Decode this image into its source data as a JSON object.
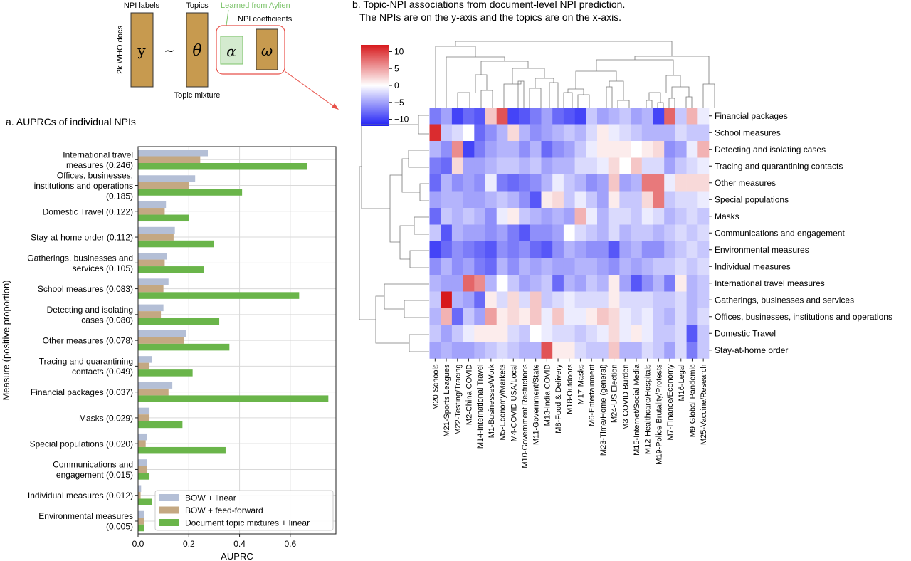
{
  "schematic": {
    "npi_labels": "NPI labels",
    "topics": "Topics",
    "learned": "Learned from Aylien",
    "npi_coefficients": "NPI coefficients",
    "docs": "2k WHO docs",
    "topic_mixture": "Topic mixture",
    "sym_y": "y",
    "sym_tilde": "~",
    "sym_theta": "θ",
    "sym_alpha": "α",
    "sym_omega": "ω",
    "colors": {
      "box": "#c79a4f",
      "alpha_box": "#d4ebcf",
      "accent": "#e8524a",
      "learned": "#7cc36a"
    }
  },
  "chart_data": [
    {
      "type": "bar",
      "orientation": "horizontal",
      "title": "a. AUPRCs of individual NPIs",
      "xlabel": "AUPRC",
      "ylabel": "Measure (positive proportion)",
      "xlim": [
        0,
        0.78
      ],
      "xticks": [
        "0.0",
        "0.2",
        "0.4",
        "0.6"
      ],
      "xtick_values": [
        0,
        0.2,
        0.4,
        0.6
      ],
      "grid": true,
      "legend_position": "lower-right",
      "categories": [
        [
          "International travel",
          "measures (0.246)"
        ],
        [
          "Offices, businesses,",
          "institutions and operations",
          "(0.185)"
        ],
        [
          "Domestic Travel (0.122)"
        ],
        [
          "Stay-at-home order (0.112)"
        ],
        [
          "Gatherings, businesses and",
          "services (0.105)"
        ],
        [
          "School measures (0.083)"
        ],
        [
          "Detecting and isolating",
          "cases (0.080)"
        ],
        [
          "Other measures (0.078)"
        ],
        [
          "Tracing and quarantining",
          "contacts (0.049)"
        ],
        [
          "Financial packages (0.037)"
        ],
        [
          "Masks (0.029)"
        ],
        [
          "Special populations (0.020)"
        ],
        [
          "Communications and",
          "engagement (0.015)"
        ],
        [
          "Individual measures (0.012)"
        ],
        [
          "Environmental measures",
          "(0.005)"
        ]
      ],
      "series": [
        {
          "name": "BOW + linear",
          "color": "#b4bfd6",
          "values": [
            0.275,
            0.225,
            0.11,
            0.145,
            0.115,
            0.12,
            0.1,
            0.19,
            0.055,
            0.135,
            0.045,
            0.035,
            0.035,
            0.012,
            0.025
          ]
        },
        {
          "name": "BOW + feed-forward",
          "color": "#c4a882",
          "values": [
            0.245,
            0.2,
            0.105,
            0.14,
            0.105,
            0.1,
            0.09,
            0.18,
            0.045,
            0.12,
            0.045,
            0.03,
            0.035,
            0.01,
            0.025
          ]
        },
        {
          "name": "Document topic mixtures + linear",
          "color": "#6ab54a",
          "values": [
            0.665,
            0.41,
            0.2,
            0.3,
            0.26,
            0.635,
            0.32,
            0.36,
            0.215,
            0.75,
            0.175,
            0.345,
            0.045,
            0.055,
            0.025
          ]
        }
      ]
    },
    {
      "type": "heatmap",
      "title": "b. Topic-NPI associations from document-level NPI prediction.",
      "subtitle": "The NPIs are on the y-axis and the topics are on the x-axis.",
      "colorbar_ticks": [
        "10",
        "5",
        "0",
        "−5",
        "−10"
      ],
      "colorbar_tick_values": [
        10,
        5,
        0,
        -5,
        -10
      ],
      "vlim": [
        -12,
        12
      ],
      "color_positive": "#d7191c",
      "color_negative": "#1f1ff5",
      "rows": [
        "Financial packages",
        "School measures",
        "Detecting and isolating cases",
        "Tracing and quarantining contacts",
        "Other measures",
        "Special populations",
        "Masks",
        "Communications and engagement",
        "Environmental measures",
        "Individual measures",
        "International travel measures",
        "Gatherings, businesses and services",
        "Offices, businesses, institutions and operations",
        "Domestic Travel",
        "Stay-at-home order"
      ],
      "columns": [
        "M20-Schools",
        "M21-Sports Leagues",
        "M22-Testing/Tracing",
        "M2-China COVID",
        "M14-International Travel",
        "M1-Businesses/Work",
        "M5-Economy/Markets",
        "M4-COVID USA/Local",
        "M10-Government Restrictions",
        "M11-Government/State",
        "M13-India COVID",
        "M8-Food & Delivery",
        "M18-Outdoors",
        "M17-Masks",
        "M6-Entertainment",
        "M23-Time/Home (general)",
        "M24-US Election",
        "M3-COVID Burden",
        "M15-Internet/Social Media",
        "M12-Healthcare/Hospitals",
        "M19-Police Brutality/Protests",
        "M7-Finance/Economy",
        "M16-Legal",
        "M9-Global Pandemic",
        "M25-Vaccine/Research"
      ],
      "values": [
        [
          -7,
          -5,
          -10,
          -8,
          -9,
          3,
          9,
          -10,
          -9,
          -7,
          -5,
          -8,
          -9,
          -10,
          -3,
          -5,
          -4,
          -3,
          -5,
          -4,
          -10,
          8,
          -3,
          4,
          -1
        ],
        [
          11,
          -3,
          -2,
          0,
          -8,
          -6,
          -4,
          2,
          -4,
          -6,
          -5,
          -4,
          -3,
          -4,
          -2,
          1,
          -1,
          -2,
          -3,
          -4,
          -4,
          -4,
          -2,
          -3,
          -3
        ],
        [
          -4,
          -6,
          6,
          -10,
          -7,
          -5,
          -4,
          -4,
          -6,
          -4,
          -8,
          -6,
          -5,
          -3,
          -1,
          1,
          1,
          1,
          0,
          1,
          2,
          -6,
          -5,
          -1,
          4
        ],
        [
          -7,
          -8,
          2,
          -5,
          -5,
          -4,
          -3,
          -3,
          -4,
          -3,
          -5,
          -4,
          -4,
          -2,
          -2,
          -1,
          2,
          0,
          3,
          -2,
          -2,
          -5,
          -3,
          -2,
          -1
        ],
        [
          -8,
          -4,
          -6,
          -5,
          -6,
          -1,
          -7,
          -8,
          -7,
          -6,
          -4,
          -1,
          -3,
          -4,
          -6,
          -5,
          3,
          -5,
          -4,
          7,
          7,
          -1,
          2,
          2,
          2
        ],
        [
          -5,
          -4,
          -4,
          -5,
          -5,
          -4,
          -3,
          -4,
          -6,
          -9,
          1,
          2,
          -3,
          -1,
          -3,
          -5,
          1,
          -3,
          -3,
          2,
          7,
          -3,
          -2,
          -2,
          -1
        ],
        [
          -8,
          -3,
          -4,
          -3,
          -4,
          -6,
          -1,
          1,
          -3,
          -4,
          -5,
          -4,
          -5,
          4,
          -1,
          -4,
          -2,
          -2,
          -3,
          -1,
          -2,
          -4,
          -3,
          -2,
          -3
        ],
        [
          -3,
          -9,
          -4,
          -5,
          -5,
          -6,
          -5,
          -7,
          -9,
          -6,
          -6,
          -5,
          0,
          -2,
          -3,
          -4,
          -2,
          -4,
          -3,
          -3,
          -4,
          -3,
          -2,
          -3,
          -2
        ],
        [
          -10,
          -8,
          -6,
          -7,
          -8,
          -9,
          -6,
          -7,
          -6,
          -8,
          -9,
          -6,
          -4,
          -5,
          -6,
          -6,
          -9,
          -5,
          -4,
          -6,
          -6,
          -4,
          -3,
          -2,
          -3
        ],
        [
          -6,
          -4,
          -6,
          -5,
          -7,
          -8,
          -4,
          -6,
          -4,
          -5,
          -4,
          -5,
          -5,
          -4,
          -4,
          -5,
          -6,
          -4,
          -5,
          -4,
          -3,
          -3,
          -2,
          -3,
          -2
        ],
        [
          -4,
          -5,
          -5,
          8,
          6,
          -4,
          0,
          -3,
          -5,
          -4,
          -3,
          -8,
          -4,
          -5,
          -3,
          -4,
          1,
          -5,
          -9,
          -6,
          -4,
          -7,
          1,
          -4,
          -3
        ],
        [
          -3,
          12,
          -4,
          -5,
          -8,
          1,
          -2,
          2,
          -2,
          3,
          -3,
          -2,
          -1,
          -2,
          -2,
          -2,
          1,
          -2,
          -2,
          -2,
          -3,
          -3,
          -2,
          -4,
          -3
        ],
        [
          -4,
          4,
          -8,
          -3,
          -5,
          5,
          1,
          2,
          1,
          3,
          -1,
          3,
          -1,
          -1,
          1,
          3,
          2,
          -1,
          -2,
          -1,
          -3,
          -4,
          -2,
          -4,
          -2
        ],
        [
          -3,
          -5,
          -3,
          -1,
          1,
          1,
          1,
          -2,
          -3,
          0,
          -1,
          -2,
          -2,
          -3,
          -2,
          -1,
          2,
          -1,
          1,
          -1,
          -3,
          -3,
          -2,
          -9,
          -3
        ],
        [
          -5,
          -4,
          -5,
          -5,
          -4,
          -3,
          -2,
          -3,
          -4,
          -4,
          9,
          1,
          1,
          -2,
          -3,
          -3,
          3,
          -4,
          -4,
          -2,
          -3,
          -5,
          -2,
          -7,
          -3
        ]
      ]
    }
  ]
}
